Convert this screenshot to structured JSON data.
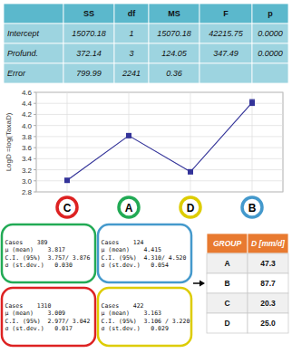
{
  "chart_data": [
    {
      "type": "table",
      "columns": [
        null,
        "SS",
        "df",
        "MS",
        "F",
        "p"
      ],
      "rows": [
        [
          "Intercept",
          "15070.18",
          "1",
          "15070.18",
          "42215.75",
          "0.0000"
        ],
        [
          "Profund.",
          "372.14",
          "3",
          "124.05",
          "347.49",
          "0.0000"
        ],
        [
          "Error",
          "799.99",
          "2241",
          "0.36",
          null,
          null
        ]
      ],
      "color": "#5bb8cc"
    },
    {
      "type": "line",
      "categories": [
        "C",
        "A",
        "D",
        "B"
      ],
      "values": [
        3.009,
        3.817,
        3.163,
        4.415
      ],
      "errors": [
        0.017,
        0.03,
        0.029,
        0.054
      ],
      "ylim": [
        2.8,
        4.6
      ],
      "yticks": [
        2.8,
        {
          "value": 3.0,
          "label": "3.0"
        },
        3.2,
        3.4,
        3.6,
        3.8,
        {
          "value": 4.0,
          "label": "4.0"
        },
        4.2,
        4.4,
        4.6
      ],
      "ylabel": "LogD =log(TaxaD)",
      "color": "#333399",
      "colors": [
        "#dd2222",
        "#22aa55",
        "#ddcc00",
        "#4499cc"
      ],
      "marker": "square",
      "grid": true,
      "annotations": [
        {
          "text": "Cases    389\nμ (mean)    3.817\nC.I. (95%)  3.757/ 3.876\nσ (st.dev.)   0.030",
          "color": "#22aa55"
        },
        {
          "text": "Cases    124\nμ (mean)    4.415\nC.I. (95%)  4.310/ 4.520\nσ (st.dev.)   0.054",
          "color": "#4499cc"
        },
        {
          "text": "Cases    1310\nμ (mean)    3.009\nC.I. (95%)  2.977/ 3.042\nσ (st.dev.)   0.017",
          "color": "#dd2222"
        },
        {
          "text": "Cases    422\nμ (mean)    3.163\nC.I. (95%)  3.106 / 3.220\nσ (st.dev.)   0.029",
          "color": "#ddcc00"
        }
      ]
    },
    {
      "type": "table",
      "columns": [
        "GROUP",
        "D [mm/d]"
      ],
      "rows": [
        [
          "A",
          "47.3"
        ],
        [
          "B",
          "87.7"
        ],
        [
          "C",
          "20.3"
        ],
        [
          "D",
          "25.0"
        ]
      ],
      "color": "#e87a30"
    }
  ]
}
